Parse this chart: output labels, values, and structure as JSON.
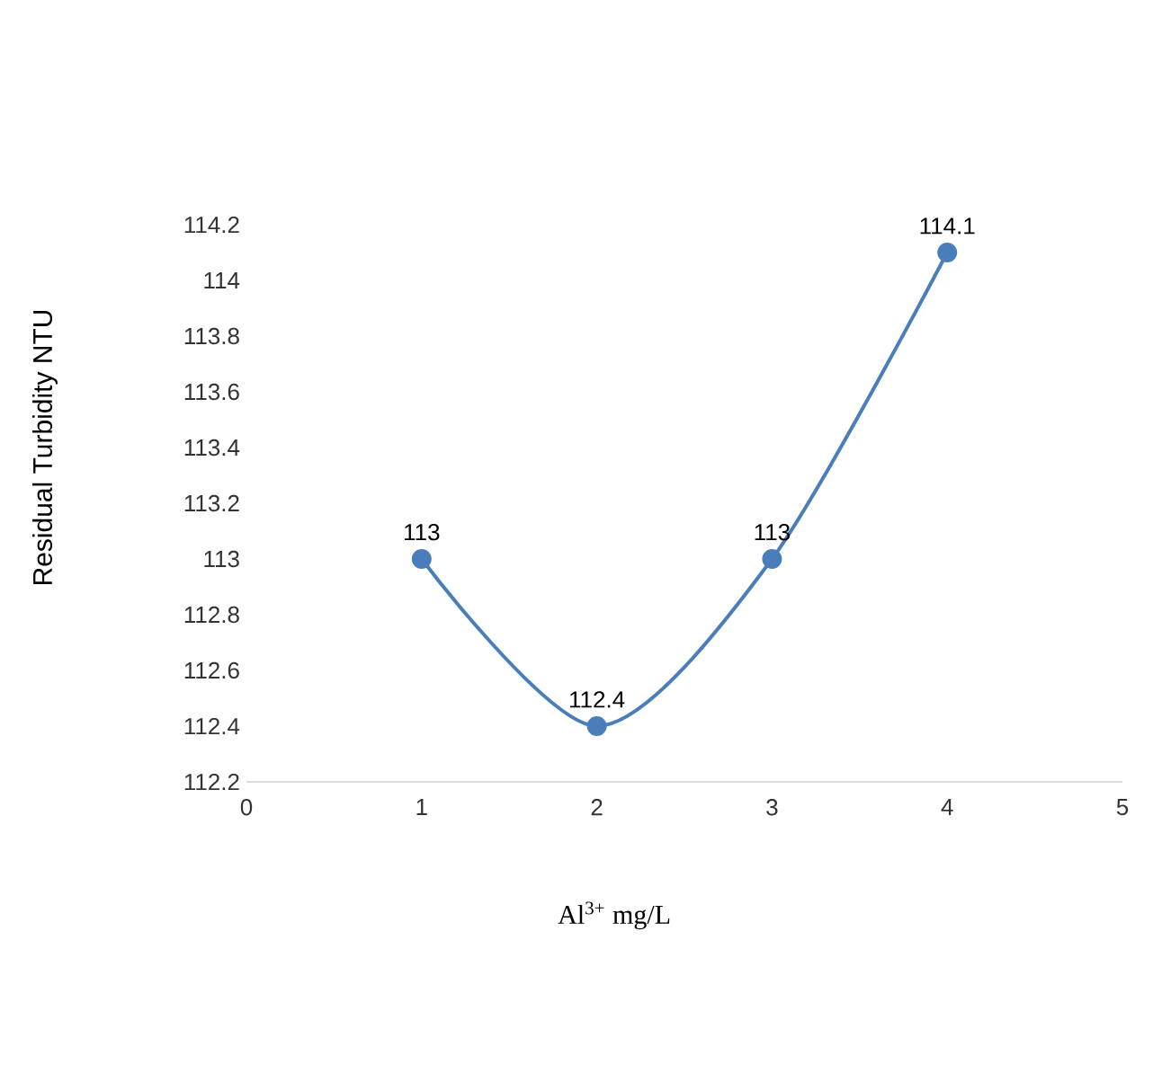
{
  "chart_data": {
    "type": "line",
    "xlabel": "Al$^{3+}$ mg/L",
    "ylabel": "Residual Turbidity NTU",
    "x": [
      1,
      2,
      3,
      4
    ],
    "series": [
      {
        "color": "#4a7ebb",
        "values": [
          113,
          112.4,
          113,
          114.1
        ]
      }
    ],
    "xlim": [
      0,
      5
    ],
    "xticks": [
      0,
      1,
      2,
      3,
      4,
      5
    ],
    "ylim": [
      112.2,
      114.2
    ],
    "yticks": [
      112.2,
      112.4,
      112.6,
      112.8,
      113,
      113.2,
      113.4,
      113.6,
      113.8,
      114,
      114.2
    ],
    "marker": "circle",
    "data_labels": true
  }
}
